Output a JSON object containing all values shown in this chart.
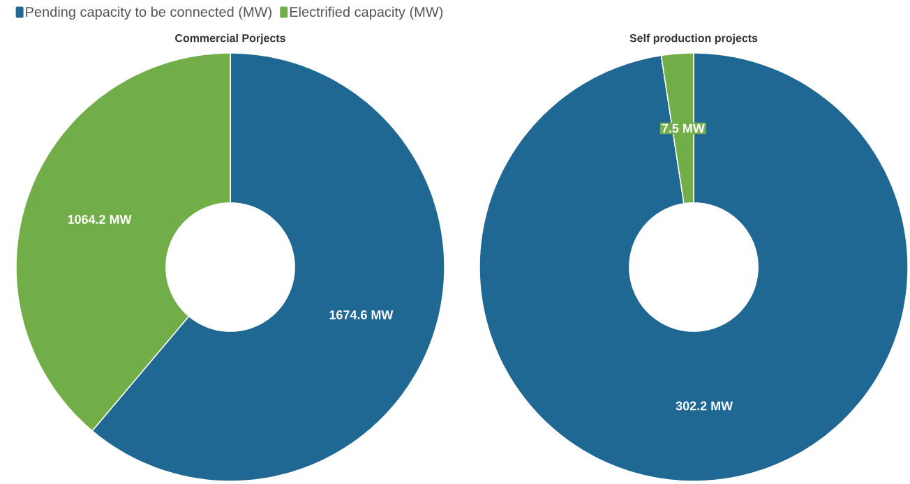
{
  "chart_data": [
    {
      "type": "donut",
      "title": "Commercial Porjects",
      "categories": [
        "Pending capacity to be connected (MW)",
        "Electrified capacity (MW)"
      ],
      "values": [
        1674.6,
        1064.2
      ],
      "colors": [
        "#1e6893",
        "#72ae48"
      ],
      "value_labels": [
        "1674.6 MW",
        "1064.2 MW"
      ],
      "legend": "top"
    },
    {
      "type": "donut",
      "title": "Self production projects",
      "categories": [
        null,
        null
      ],
      "values": [
        302.2,
        7.5
      ],
      "colors": [
        "#1e6893",
        "#72ae48"
      ],
      "value_labels": [
        "302.2 MW",
        "7.5 MW"
      ],
      "legend": false
    }
  ]
}
